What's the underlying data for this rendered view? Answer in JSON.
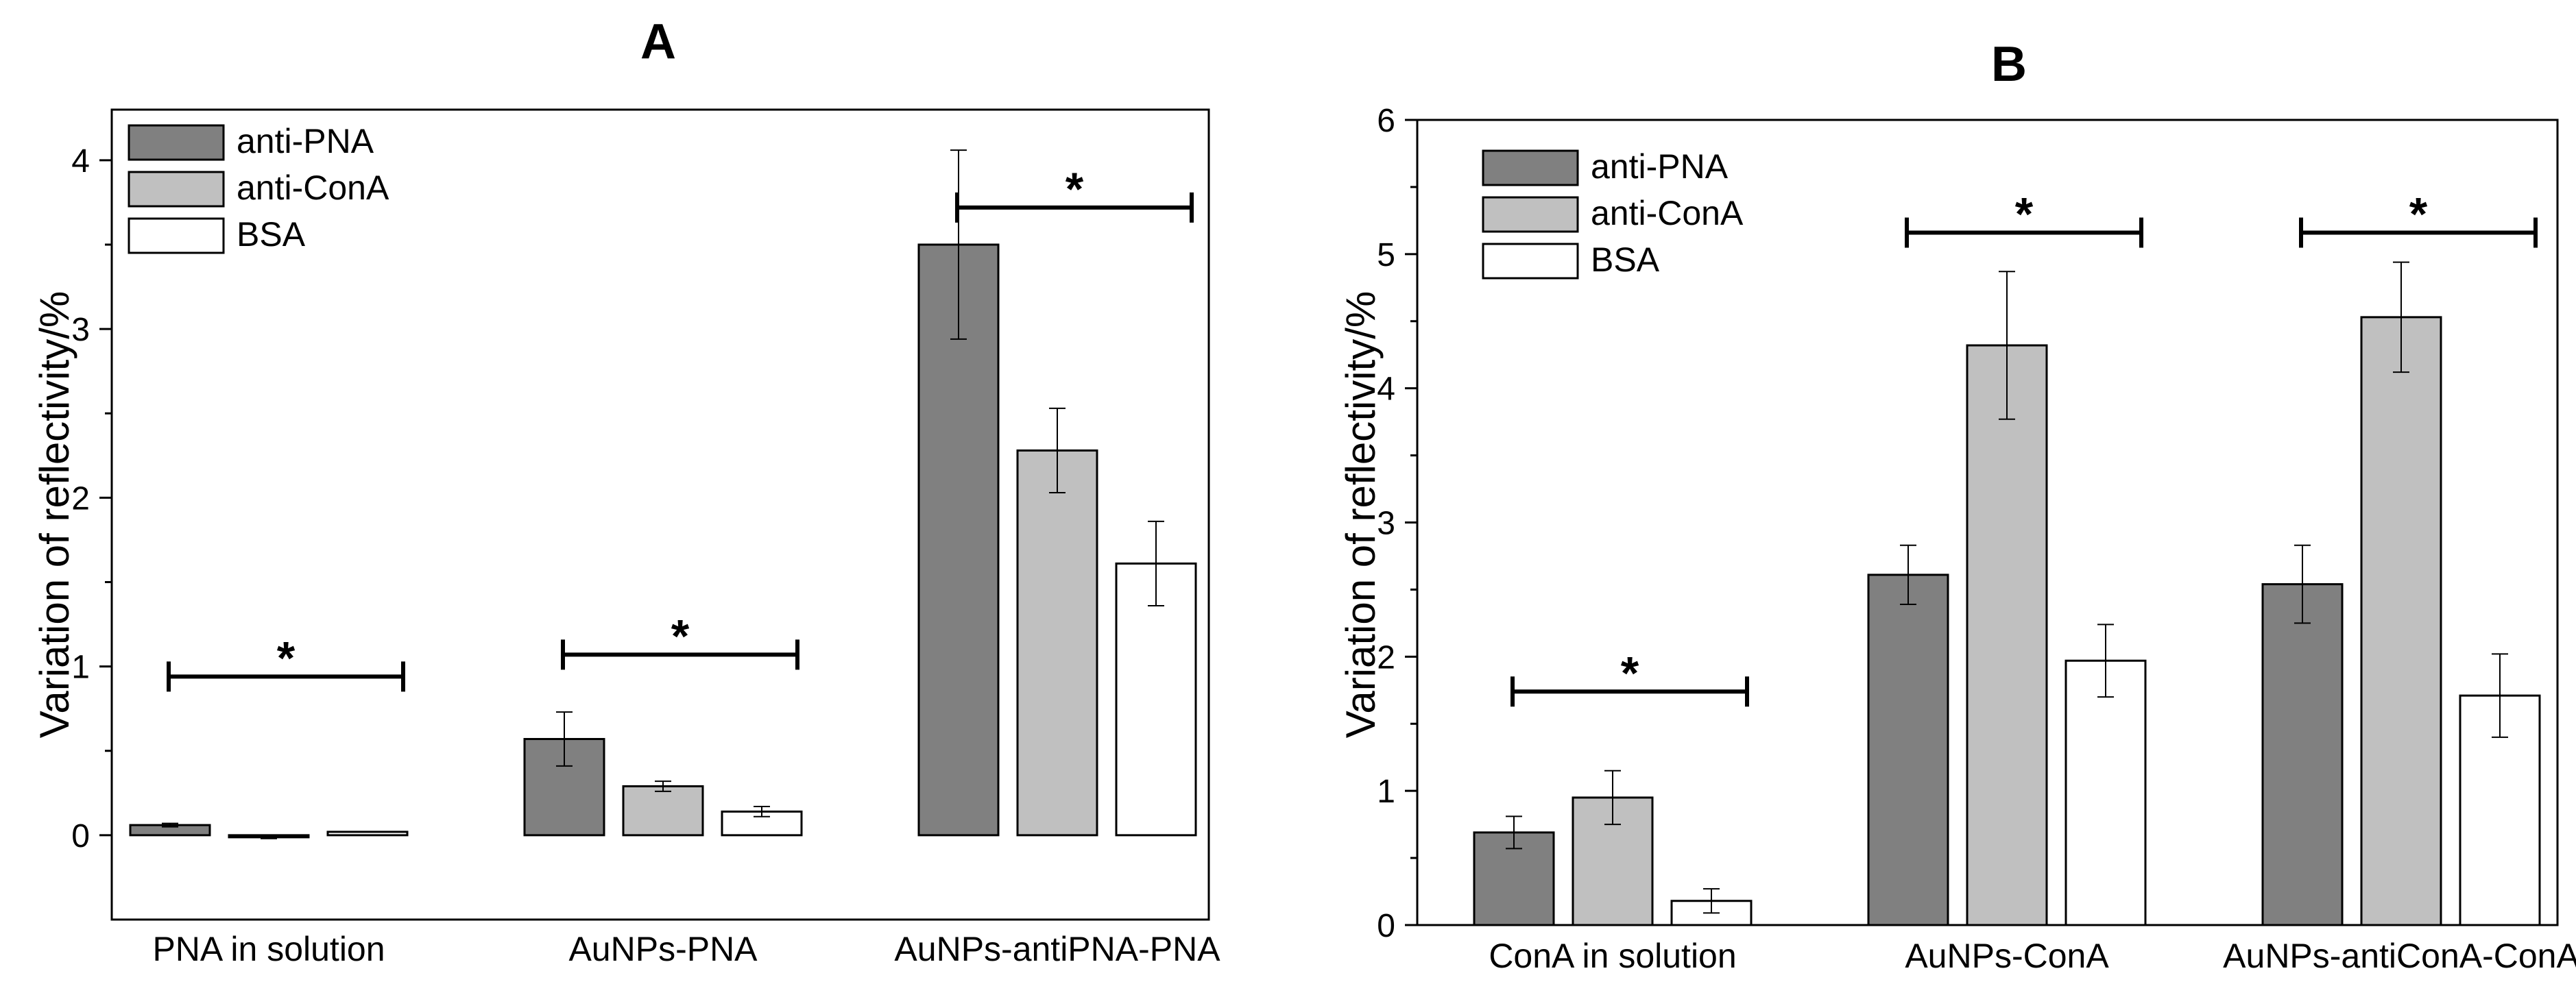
{
  "chart_data": [
    {
      "panel": "A",
      "type": "bar",
      "ylabel": "Variation of reflectivity/%",
      "xlabel": "",
      "ylim": [
        -0.5,
        4.3
      ],
      "yticks": [
        0,
        1,
        2,
        3,
        4
      ],
      "categories": [
        "PNA in solution",
        "AuNPs-PNA",
        "AuNPs-antiPNA-PNA"
      ],
      "series": [
        {
          "name": "anti-PNA",
          "color": "#808080",
          "values": [
            0.06,
            0.57,
            3.5
          ],
          "errors": [
            0.01,
            0.16,
            0.56
          ]
        },
        {
          "name": "anti-ConA",
          "color": "#c0c0c0",
          "values": [
            -0.01,
            0.29,
            2.28
          ],
          "errors": [
            0.01,
            0.03,
            0.25
          ]
        },
        {
          "name": "BSA",
          "color": "#ffffff",
          "values": [
            0.02,
            0.14,
            1.61
          ],
          "errors": [
            0.0,
            0.03,
            0.25
          ]
        }
      ],
      "significance": [
        {
          "category": 0,
          "value": 0.94,
          "label": "*"
        },
        {
          "category": 1,
          "value": 1.07,
          "label": "*"
        },
        {
          "category": 2,
          "value": 3.72,
          "label": "*"
        }
      ],
      "legend_position": "top-left"
    },
    {
      "panel": "B",
      "type": "bar",
      "ylabel": "Variation of reflectivity/%",
      "xlabel": "",
      "ylim": [
        0,
        6
      ],
      "yticks": [
        0,
        1,
        2,
        3,
        4,
        5,
        6
      ],
      "categories": [
        "ConA in solution",
        "AuNPs-ConA",
        "AuNPs-antiConA-ConA"
      ],
      "series": [
        {
          "name": "anti-PNA",
          "color": "#808080",
          "values": [
            0.69,
            2.61,
            2.54
          ],
          "errors": [
            0.12,
            0.22,
            0.29
          ]
        },
        {
          "name": "anti-ConA",
          "color": "#c0c0c0",
          "values": [
            0.95,
            4.32,
            4.53
          ],
          "errors": [
            0.2,
            0.55,
            0.41
          ]
        },
        {
          "name": "BSA",
          "color": "#ffffff",
          "values": [
            0.18,
            1.97,
            1.71
          ],
          "errors": [
            0.09,
            0.27,
            0.31
          ]
        }
      ],
      "significance": [
        {
          "category": 0,
          "value": 1.74,
          "label": "*"
        },
        {
          "category": 1,
          "value": 5.16,
          "label": "*"
        },
        {
          "category": 2,
          "value": 5.16,
          "label": "*"
        }
      ],
      "legend_position": "top-left"
    }
  ]
}
